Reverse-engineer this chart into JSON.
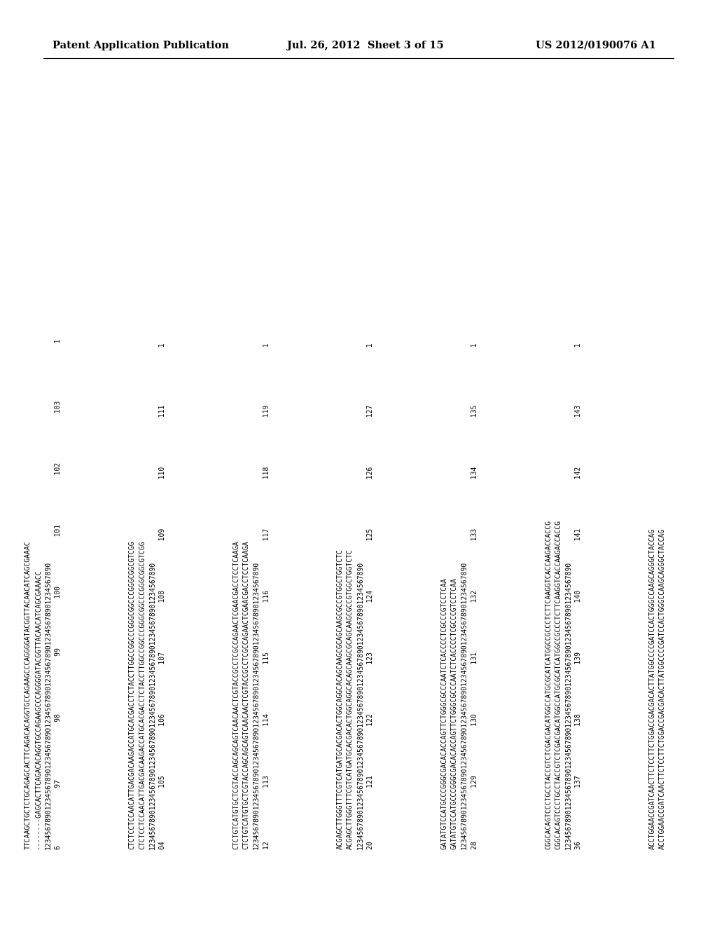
{
  "header_left": "Patent Application Publication",
  "header_mid": "Jul. 26, 2012  Sheet 3 of 15",
  "header_right": "US 2012/0190076 A1",
  "background_color": "#ffffff",
  "text_color": "#000000",
  "blocks": [
    [
      "TTCAAGCTGCTCTGCAGAGCACTTCAGACACAGGTGCCAGAAGCCCAGGGGATACGGTTACAACATCAGCGAAAC",
      "--------GAGCACTTCAGACACAGGTGCCAGAAGCCCAGGGGATACGGTTACAACATCAGCGAAACC",
      "1234567890123456789012345678901234567890123456789012345678901234567890",
      "6              97              98              99            100            101            102            103              1"
    ],
    [
      "CTCTCCTCCAACATTGACGACAAGACCATGCACGACCTCTACCTTGGCCGGCCCGGGCGGCCCGGGCGGCGTCGG",
      "CTCTCCTCCAACATTGACGACAAGACCATGCACGACCTCTACCTTGGCCGGCCCGGGCGGCCCGGGCGGCGTCGG",
      "1234567890123456789012345678901234567890123456789012345678901234567890",
      "04             105            106            107            108            109            110            111              1"
    ],
    [
      "CTCTGTCATGTGCTCGTACCAGCAGCAGTCAACAACTCGTACCGCCTCGCCAGAACTCGAACGACCTCCTCAAGA",
      "CTCTGTCATGTGCTCGTACCAGCAGCAGTCAACAACTCGTACCGCCTCGCCAGAACTCGAACGACCTCCTCAAGA",
      "1234567890123456789012345678901234567890123456789012345678901234567890",
      "12             113            114            115            116            117            118            119              1"
    ],
    [
      "ACGAGCTTGGGTTTCGTCATGATGCACGACACTGGCAGGCACAGCAAGCGCAGCAAGCGCCGTGGCTGGTCTC",
      "ACGAGCTTGGGTTTCGTCATGATGCACGACACTGGCAGGCACAGCAAGCGCAGCAAGCGCCGTGGCTGGTCTC",
      "1234567890123456789012345678901234567890123456789012345678901234567890",
      "20             121            122            123            124            125            126            127              1"
    ],
    [
      "GATATGTCCATGCCCGGGCGACACACCAGTTCTGGGCGCCCAATCTCACCCCTCGCCCGTCCTCAA",
      "GATATGTCCATGCCCGGGCGACACACCAGTTCTGGGCGCCCAATCTCACCCCTCGCCCGTCCTCAA",
      "1234567890123456789012345678901234567890123456789012345678901234567890",
      "28             129            130            131            132            133            134            135              1"
    ],
    [
      "CGGCACAGTCCCTGCCTACCGTCTCGACGACATGGCCATGCGCATCATGGCCGCCCTCTTCAAGGTCACCAAGACCACCG",
      "CGGCACAGTCCCTGCCTACCGTCTCGACGACATGGCCATGCGCATCATGGCCGCCCTCTTCAAGGTCACCAAGACCACCG",
      "1234567890123456789012345678901234567890123456789012345678901234567890",
      "36             137            138            139            140            141            142            143              1"
    ],
    [
      "ACCTGGAACCGATCAACTTCTCCTTCTGGACCGACGACACTTATGGCCCCGATCCACTGGGCCAAGCAGGGCTACCAG",
      "ACCTGGAACCGATCAACTTCTCCTTCTGGACCGACGACACTTATGGCCCCGATCCACTGGGCCAAGCAGGGCTACCAG"
    ]
  ]
}
